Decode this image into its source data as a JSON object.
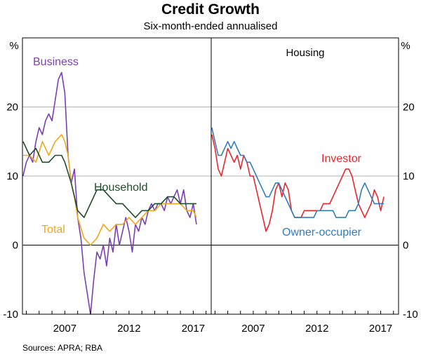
{
  "chart_data": {
    "title": "Credit Growth",
    "subtitle": "Six-month-ended annualised",
    "source": "Sources: APRA; RBA",
    "type": "line",
    "y_unit_left": "%",
    "y_unit_right": "%",
    "ylim": [
      -10,
      30
    ],
    "yticks": [
      -10,
      0,
      10,
      20
    ],
    "xlim": [
      2003.7,
      2018.4
    ],
    "xticks": [
      2007,
      2012,
      2017
    ],
    "grid": true,
    "colors": {
      "business": "#7b3fb5",
      "total": "#f2a71b",
      "household": "#1e4d2b",
      "investor": "#e8262f",
      "owner": "#2f7cc1",
      "grid": "#b0b0b0",
      "axis": "#000000"
    },
    "panels": [
      {
        "name": "",
        "series": [
          {
            "name": "Business",
            "color_key": "business",
            "x": [
              2003.75,
              2004.0,
              2004.25,
              2004.5,
              2004.75,
              2005.0,
              2005.25,
              2005.5,
              2005.75,
              2006.0,
              2006.25,
              2006.5,
              2006.75,
              2007.0,
              2007.25,
              2007.5,
              2007.75,
              2008.0,
              2008.25,
              2008.5,
              2008.75,
              2009.0,
              2009.25,
              2009.5,
              2009.75,
              2010.0,
              2010.25,
              2010.5,
              2010.75,
              2011.0,
              2011.25,
              2011.5,
              2011.75,
              2012.0,
              2012.25,
              2012.5,
              2012.75,
              2013.0,
              2013.25,
              2013.5,
              2013.75,
              2014.0,
              2014.25,
              2014.5,
              2014.75,
              2015.0,
              2015.25,
              2015.5,
              2015.75,
              2016.0,
              2016.25,
              2016.5,
              2016.75,
              2017.0,
              2017.25
            ],
            "y": [
              10,
              12,
              13,
              12,
              15,
              17,
              16,
              18,
              19,
              18,
              21,
              24,
              25,
              22,
              13,
              9,
              11,
              4,
              1,
              -4,
              -7,
              -10,
              -5,
              -1,
              -2,
              0,
              -3,
              1,
              -1,
              3,
              0,
              2,
              4,
              2,
              -1,
              3,
              2,
              4,
              3,
              5,
              6,
              5,
              6,
              6,
              5,
              7,
              6,
              7,
              8,
              6,
              8,
              5,
              4,
              6,
              3
            ]
          },
          {
            "name": "Total",
            "color_key": "total",
            "x": [
              2003.75,
              2004.25,
              2004.75,
              2005.25,
              2005.75,
              2006.25,
              2006.75,
              2007.0,
              2007.25,
              2007.5,
              2007.75,
              2008.0,
              2008.5,
              2009.0,
              2009.5,
              2010.0,
              2010.5,
              2011.0,
              2011.5,
              2012.0,
              2012.5,
              2013.0,
              2013.5,
              2014.0,
              2014.5,
              2015.0,
              2015.5,
              2016.0,
              2016.5,
              2017.0,
              2017.25
            ],
            "y": [
              13,
              13,
              12,
              15,
              13,
              15,
              16,
              15,
              13,
              9,
              7,
              4,
              1,
              0,
              1,
              3,
              2,
              3,
              3,
              4,
              3,
              4,
              5,
              5,
              6,
              6,
              6,
              6,
              5,
              5,
              4
            ]
          },
          {
            "name": "Household",
            "color_key": "household",
            "x": [
              2003.75,
              2004.25,
              2004.75,
              2005.25,
              2005.75,
              2006.25,
              2006.75,
              2007.0,
              2007.5,
              2008.0,
              2008.5,
              2009.0,
              2009.5,
              2010.0,
              2010.5,
              2011.0,
              2011.5,
              2012.0,
              2012.5,
              2013.0,
              2013.5,
              2014.0,
              2014.5,
              2015.0,
              2015.5,
              2016.0,
              2016.5,
              2017.0,
              2017.25
            ],
            "y": [
              15,
              13,
              14,
              12,
              12,
              13,
              13,
              12,
              9,
              5,
              4,
              6,
              8,
              8,
              7,
              6,
              6,
              5,
              4,
              5,
              5,
              6,
              6,
              7,
              7,
              6,
              6,
              6,
              6
            ]
          }
        ]
      },
      {
        "name": "Housing",
        "series": [
          {
            "name": "Investor",
            "color_key": "investor",
            "x": [
              2003.75,
              2004.0,
              2004.25,
              2004.5,
              2004.75,
              2005.0,
              2005.25,
              2005.5,
              2005.75,
              2006.0,
              2006.25,
              2006.5,
              2006.75,
              2007.0,
              2007.25,
              2007.5,
              2007.75,
              2008.0,
              2008.25,
              2008.5,
              2008.75,
              2009.0,
              2009.25,
              2009.5,
              2009.75,
              2010.0,
              2010.25,
              2010.5,
              2010.75,
              2011.0,
              2011.25,
              2011.5,
              2011.75,
              2012.0,
              2012.25,
              2012.5,
              2012.75,
              2013.0,
              2013.25,
              2013.5,
              2013.75,
              2014.0,
              2014.25,
              2014.5,
              2014.75,
              2015.0,
              2015.25,
              2015.5,
              2015.75,
              2016.0,
              2016.25,
              2016.5,
              2016.75,
              2017.0,
              2017.25
            ],
            "y": [
              16,
              14,
              11,
              10,
              12,
              14,
              13,
              12,
              13,
              11,
              13,
              12,
              10,
              10,
              8,
              6,
              4,
              2,
              3,
              5,
              8,
              9,
              7,
              9,
              8,
              5,
              4,
              4,
              4,
              5,
              5,
              5,
              5,
              5,
              5,
              6,
              6,
              6,
              7,
              8,
              9,
              10,
              11,
              11,
              10,
              8,
              6,
              5,
              4,
              5,
              6,
              8,
              7,
              5,
              7
            ]
          },
          {
            "name": "Owner-occupier",
            "color_key": "owner",
            "x": [
              2003.75,
              2004.0,
              2004.25,
              2004.5,
              2004.75,
              2005.0,
              2005.25,
              2005.5,
              2005.75,
              2006.0,
              2006.25,
              2006.5,
              2006.75,
              2007.0,
              2007.25,
              2007.5,
              2007.75,
              2008.0,
              2008.25,
              2008.5,
              2008.75,
              2009.0,
              2009.25,
              2009.5,
              2009.75,
              2010.0,
              2010.25,
              2010.5,
              2010.75,
              2011.0,
              2011.25,
              2011.5,
              2011.75,
              2012.0,
              2012.25,
              2012.5,
              2012.75,
              2013.0,
              2013.25,
              2013.5,
              2013.75,
              2014.0,
              2014.25,
              2014.5,
              2014.75,
              2015.0,
              2015.25,
              2015.5,
              2015.75,
              2016.0,
              2016.25,
              2016.5,
              2016.75,
              2017.0,
              2017.25
            ],
            "y": [
              17,
              15,
              13,
              13,
              14,
              15,
              14,
              15,
              14,
              13,
              13,
              12,
              12,
              11,
              10,
              9,
              8,
              7,
              7,
              8,
              9,
              9,
              8,
              7,
              6,
              5,
              4,
              4,
              4,
              4,
              4,
              4,
              4,
              5,
              5,
              5,
              5,
              5,
              5,
              4,
              4,
              4,
              4,
              5,
              5,
              5,
              6,
              8,
              9,
              8,
              7,
              6,
              6,
              6,
              6
            ]
          }
        ]
      }
    ],
    "labels": [
      {
        "text": "Business",
        "color_key": "business"
      },
      {
        "text": "Household",
        "color_key": "household"
      },
      {
        "text": "Total",
        "color_key": "total"
      },
      {
        "text": "Investor",
        "color_key": "investor"
      },
      {
        "text": "Owner-occupier",
        "color_key": "owner"
      }
    ]
  }
}
